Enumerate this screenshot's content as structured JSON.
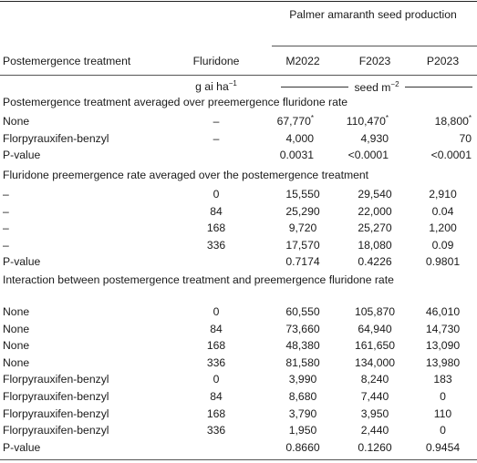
{
  "header": {
    "group_label": "Palmer amaranth seed production",
    "col_treatment": "Postemergence treatment",
    "col_fluridone": "Fluridone",
    "col_m2022": "M2022",
    "col_f2023": "F2023",
    "col_p2023": "P2023",
    "unit_rate": "g ai ha",
    "unit_rate_sup": "−1",
    "unit_seed": "seed m",
    "unit_seed_sup": "−2"
  },
  "sections": {
    "s1": "Postemergence treatment averaged over preemergence fluridone rate",
    "s2": "Fluridone preemergence rate averaged over the postemergence treatment",
    "s3": "Interaction between postemergence treatment and preemergence fluridone rate"
  },
  "rows1": [
    {
      "t": "None",
      "f": "–",
      "m": "67,770",
      "fa": "110,470",
      "p": "18,800",
      "star": "*"
    },
    {
      "t": "Florpyrauxifen-benzyl",
      "f": "–",
      "m": "4,000",
      "fa": "4,930",
      "p": "70",
      "star": ""
    },
    {
      "t": "P-value",
      "f": "",
      "m": "0.0031",
      "fa": "<0.0001",
      "p": "<0.0001",
      "star": ""
    }
  ],
  "rows2": [
    {
      "t": "–",
      "f": "0",
      "m": "15,550",
      "fa": "29,540",
      "p": "2,910"
    },
    {
      "t": "–",
      "f": "84",
      "m": "25,290",
      "fa": "22,000",
      "p": "0.04"
    },
    {
      "t": "–",
      "f": "168",
      "m": "9,720",
      "fa": "25,270",
      "p": "1,200"
    },
    {
      "t": "–",
      "f": "336",
      "m": "17,570",
      "fa": "18,080",
      "p": "0.09"
    },
    {
      "t": "P-value",
      "f": "",
      "m": "0.7174",
      "fa": "0.4226",
      "p": "0.9801"
    }
  ],
  "rows3": [
    {
      "t": "None",
      "f": "0",
      "m": "60,550",
      "fa": "105,870",
      "p": "46,010"
    },
    {
      "t": "None",
      "f": "84",
      "m": "73,660",
      "fa": "64,940",
      "p": "14,730"
    },
    {
      "t": "None",
      "f": "168",
      "m": "48,380",
      "fa": "161,650",
      "p": "13,090"
    },
    {
      "t": "None",
      "f": "336",
      "m": "81,580",
      "fa": "134,000",
      "p": "13,980"
    },
    {
      "t": "Florpyrauxifen-benzyl",
      "f": "0",
      "m": "3,990",
      "fa": "8,240",
      "p": "183"
    },
    {
      "t": "Florpyrauxifen-benzyl",
      "f": "84",
      "m": "8,680",
      "fa": "7,440",
      "p": "0"
    },
    {
      "t": "Florpyrauxifen-benzyl",
      "f": "168",
      "m": "3,790",
      "fa": "3,950",
      "p": "110"
    },
    {
      "t": "Florpyrauxifen-benzyl",
      "f": "336",
      "m": "1,950",
      "fa": "2,440",
      "p": "0"
    },
    {
      "t": "P-value",
      "f": "",
      "m": "0.8660",
      "fa": "0.1260",
      "p": "0.9454"
    }
  ]
}
